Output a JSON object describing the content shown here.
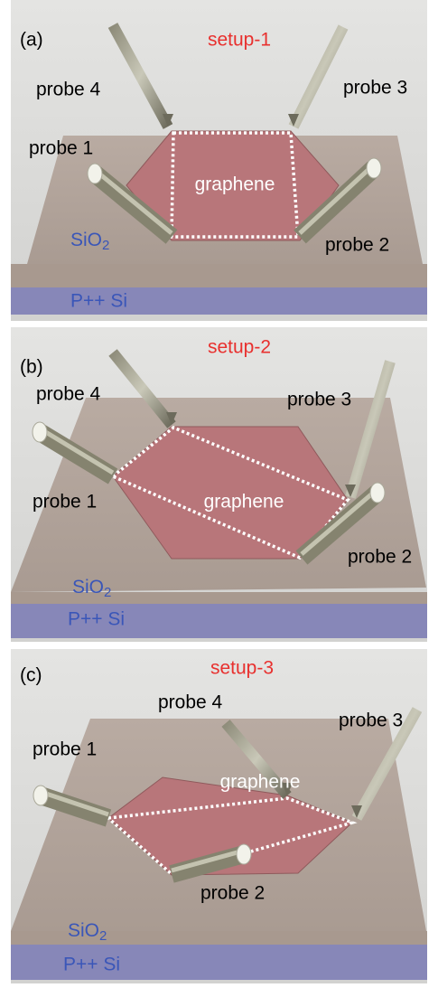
{
  "panels": [
    {
      "label": "(a)",
      "setup": "setup-1",
      "probes": [
        "probe 1",
        "probe 2",
        "probe 3",
        "probe 4"
      ],
      "material": "graphene",
      "oxide": "SiO",
      "oxide_subscript": "2",
      "base": "P++ Si"
    },
    {
      "label": "(b)",
      "setup": "setup-2",
      "probes": [
        "probe 1",
        "probe 2",
        "probe 3",
        "probe 4"
      ],
      "material": "graphene",
      "oxide": "SiO",
      "oxide_subscript": "2",
      "base": "P++ Si"
    },
    {
      "label": "(c)",
      "setup": "setup-3",
      "probes": [
        "probe 1",
        "probe 2",
        "probe 3",
        "probe 4"
      ],
      "material": "graphene",
      "oxide": "SiO",
      "oxide_subscript": "2",
      "base": "P++ Si"
    }
  ]
}
